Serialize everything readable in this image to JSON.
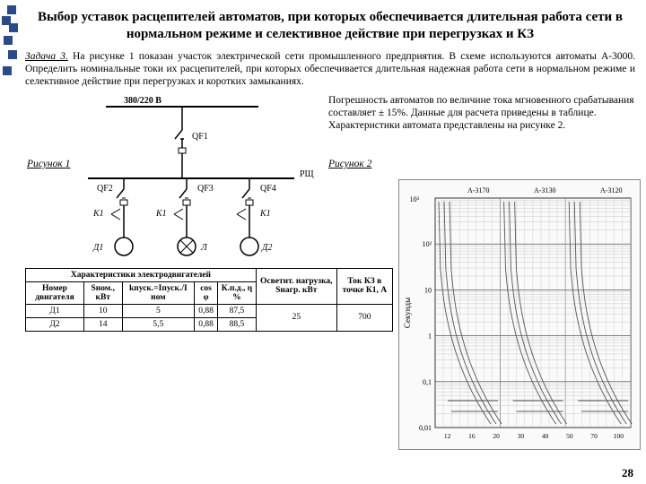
{
  "title": "Выбор уставок расцепителей автоматов, при которых обеспечивается длительная работа сети в нормальном режиме и селективное действие при перегрузках и КЗ",
  "task_lead": "Задача 3.",
  "task_body": " На рисунке 1 показан участок электрической сети промышленного предприятия. В схеме используются автоматы А-3000. Определить номинальные токи их расцепителей, при которых обеспечивается длительная надежная работа сети в нормальном режиме и селективное действие при перегрузках и коротких замыканиях.",
  "right_para": "Погрешность автоматов по величине тока мгновенного срабатывания составляет ± 15%. Данные для расчета приведены в таблице. Характеристики автомата представлены на рисунке 2.",
  "fig1": "Рисунок 1",
  "fig2": "Рисунок 2",
  "schematic": {
    "voltage": "380/220 В",
    "qf1": "QF1",
    "rsh": "РЩ",
    "qf2": "QF2",
    "qf3": "QF3",
    "qf4": "QF4",
    "k1a": "К1",
    "k1b": "К1",
    "k1c": "К1",
    "d1": "Д1",
    "l": "Л",
    "d2": "Д2"
  },
  "table": {
    "caption": "Характеристики электродвигателей",
    "headers": {
      "c1": "Номер двигателя",
      "c2": "Sном., кВт",
      "c3": "kпуск.=Iпуск./I ном",
      "c4": "cos φ",
      "c5": "К.п.д., η %",
      "c6": "Осветит. нагрузка, Sнагр. кВт",
      "c7": "Ток КЗ в точке К1, А"
    },
    "rows": [
      {
        "c1": "Д1",
        "c2": "10",
        "c3": "5",
        "c4": "0,88",
        "c5": "87,5"
      },
      {
        "c1": "Д2",
        "c2": "14",
        "c3": "5,5",
        "c4": "0,88",
        "c5": "88,5"
      }
    ],
    "c6_val": "25",
    "c7_val": "700"
  },
  "chart": {
    "headers": [
      "А-3170",
      "А-3130",
      "А-3120"
    ],
    "ylabel_top": "10³",
    "ylabel_vals": [
      "10²",
      "10",
      "1",
      "0,1",
      "0,01"
    ],
    "ytitle": "Секунды",
    "xlabel_vals": [
      "12",
      "16",
      "20",
      "30",
      "40",
      "50",
      "70",
      "100"
    ],
    "grid_color": "#bdbdbd",
    "curve_color": "#555555",
    "bg": "#fafafa"
  },
  "page_no": "28",
  "colors": {
    "deco": "#2a4a8a"
  }
}
